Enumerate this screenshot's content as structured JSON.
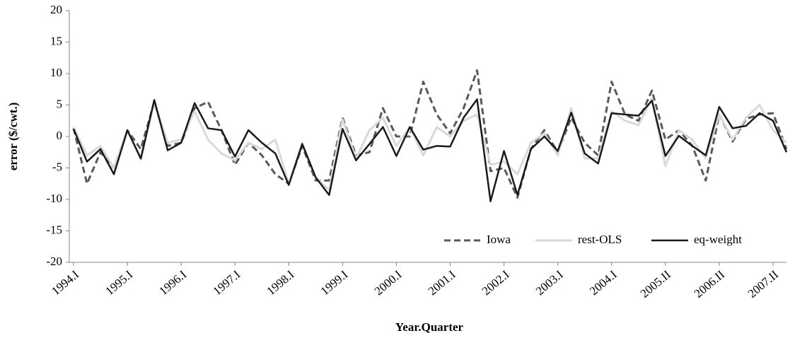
{
  "chart_data": {
    "type": "line",
    "x_label": "Year.Quarter",
    "y_label": "error  ($/cwt.)",
    "categories": [
      "1994.I",
      null,
      null,
      null,
      "1995.I",
      null,
      null,
      null,
      "1996.I",
      null,
      null,
      null,
      "1997.I",
      null,
      null,
      null,
      "1998.I",
      null,
      null,
      null,
      "1999.I",
      null,
      null,
      null,
      "2000.I",
      null,
      null,
      null,
      "2001.I",
      null,
      null,
      null,
      "2002.I",
      null,
      null,
      null,
      "2003.I",
      null,
      null,
      null,
      "2004.I",
      null,
      null,
      null,
      "2005.II",
      null,
      null,
      null,
      "2006.II",
      null,
      null,
      null,
      "2007.II",
      null
    ],
    "series": [
      {
        "name": "Iowa",
        "color": "#595959",
        "dashed": true,
        "width": 3,
        "values": [
          1.3,
          -7.5,
          -2.5,
          -5,
          1,
          -2,
          5.5,
          -1.5,
          -1,
          4.5,
          5.5,
          1,
          -4.5,
          -1,
          -3,
          -6,
          -7.5,
          -1.5,
          -7,
          -7,
          3,
          -3,
          -2.5,
          4.5,
          0,
          0,
          8.7,
          3.5,
          0.5,
          4.5,
          10.5,
          -5.5,
          -5,
          -9.7,
          -2,
          1,
          -2.5,
          3,
          -1,
          -3,
          8.7,
          3.5,
          2.5,
          7.3,
          -0.5,
          1,
          -1.5,
          -7,
          3.5,
          -0.8,
          2.8,
          3.5,
          3.7,
          -2
        ]
      },
      {
        "name": "rest-OLS",
        "color": "#d9d9d9",
        "dashed": false,
        "width": 3,
        "values": [
          1.5,
          -3,
          -1.5,
          -5,
          1,
          -3.7,
          5.5,
          -1,
          -0.5,
          4,
          -0.5,
          -2.7,
          -3.8,
          -1,
          -2,
          -0.5,
          -7.5,
          -1,
          -6.5,
          -8.5,
          2.7,
          -3.5,
          1,
          3,
          -1.5,
          1.5,
          -3,
          1.5,
          0,
          2.5,
          3.5,
          -4.5,
          -4,
          -6,
          -1,
          0.5,
          -3,
          4.5,
          -3.5,
          -3.5,
          4,
          2.5,
          1.8,
          6,
          -4.7,
          1,
          -0.5,
          -3.5,
          3.5,
          -0.5,
          3,
          5,
          1,
          -1
        ]
      },
      {
        "name": "eq-weight",
        "color": "#1a1a1a",
        "dashed": false,
        "width": 2.5,
        "values": [
          1.2,
          -4,
          -2,
          -6,
          1,
          -3.5,
          5.8,
          -2.2,
          -1,
          5.3,
          1.3,
          1,
          -3.2,
          1,
          -1,
          -2.7,
          -7.7,
          -1.2,
          -6.5,
          -9.3,
          1.2,
          -3.8,
          -1.2,
          1.5,
          -3.1,
          1.5,
          -2.1,
          -1.5,
          -1.6,
          3,
          5.9,
          -10.3,
          -2.3,
          -9.3,
          -2,
          0,
          -2.3,
          3.8,
          -2.7,
          -4.3,
          3.7,
          3.5,
          3.3,
          5.7,
          -3.1,
          0.1,
          -1.5,
          -3,
          4.7,
          1.3,
          1.7,
          3.7,
          2.5,
          -2.5
        ]
      }
    ],
    "ylim": [
      -20,
      20
    ],
    "yticks": [
      -20,
      -15,
      -10,
      -5,
      0,
      5,
      10,
      15,
      20
    ],
    "grid": false,
    "legend": "bottom-right"
  }
}
